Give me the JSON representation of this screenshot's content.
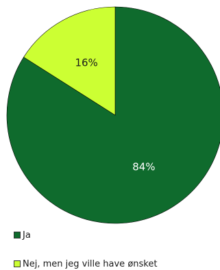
{
  "chart_data": {
    "type": "pie",
    "start_angle_deg": 0,
    "direction": "clockwise",
    "slices": [
      {
        "label": "Ja",
        "value": 84,
        "value_label": "84%",
        "color": "#0f6b2d",
        "label_color": "#ffffff"
      },
      {
        "label": "Nej, men jeg ville have ønsket",
        "value": 16,
        "value_label": "16%",
        "color": "#ccff33",
        "label_color": "#1a1a1a"
      }
    ],
    "legend_position": "bottom-left"
  }
}
